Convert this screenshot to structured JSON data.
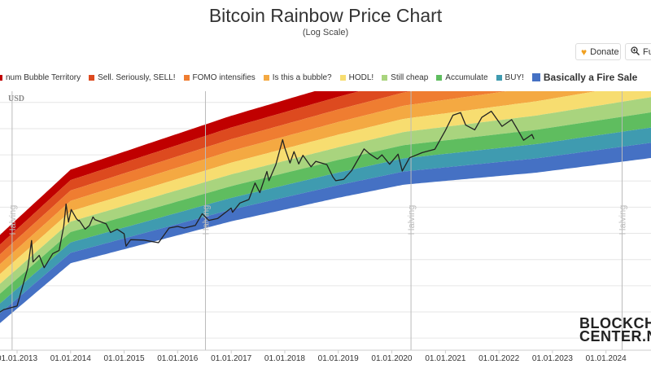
{
  "page": {
    "title": "Bitcoin Rainbow Price Chart",
    "subtitle": "(Log Scale)"
  },
  "toolbar": {
    "donate_label": "Donate",
    "full_label": "Full"
  },
  "logo": {
    "line1": "BLOCKCHAIN",
    "line2": "CENTER.NET"
  },
  "colors": {
    "bands": [
      "#c00000",
      "#dd4a1f",
      "#ef7d31",
      "#f4a942",
      "#f7dd70",
      "#a9d47e",
      "#5fbd5f",
      "#3f9bb0",
      "#4571c4"
    ],
    "price_line": "#222222",
    "halving_line": "#bbbbbb"
  },
  "chart_data": {
    "type": "line",
    "title": "Bitcoin Rainbow Price Chart",
    "subtitle": "(Log Scale)",
    "ylabel": "USD",
    "y_scale": "log",
    "grid": true,
    "xlim": [
      "2012-07-15",
      "2024-12-31"
    ],
    "x_ticks": [
      "01.01.2013",
      "01.01.2014",
      "01.01.2015",
      "01.01.2016",
      "01.01.2017",
      "01.01.2018",
      "01.01.2019",
      "01.01.2020",
      "01.01.2021",
      "01.01.2022",
      "01.01.2023",
      "01.01.2024"
    ],
    "legend": [
      {
        "name": "Maximum Bubble Territory",
        "shown_text": "num Bubble Territory",
        "color": "#c00000"
      },
      {
        "name": "Sell. Seriously, SELL!",
        "color": "#dd4a1f"
      },
      {
        "name": "FOMO intensifies",
        "color": "#ef7d31"
      },
      {
        "name": "Is this a bubble?",
        "color": "#f4a942"
      },
      {
        "name": "HODL!",
        "color": "#f7dd70"
      },
      {
        "name": "Still cheap",
        "color": "#a9d47e"
      },
      {
        "name": "Accumulate",
        "color": "#5fbd5f"
      },
      {
        "name": "BUY!",
        "color": "#3f9bb0"
      },
      {
        "name": "Basically a Fire Sale",
        "color": "#4571c4"
      }
    ],
    "annotations": [
      {
        "text": "Halving",
        "date": "2012-11-28"
      },
      {
        "text": "Halving",
        "date": "2016-07-09"
      },
      {
        "text": "Halving",
        "date": "2020-05-11"
      },
      {
        "text": "Halving",
        "date": "2024-04-20"
      }
    ],
    "price_series": {
      "name": "BTC Price",
      "points": [
        [
          "2012-07-15",
          8
        ],
        [
          "2012-10-01",
          11
        ],
        [
          "2013-01-01",
          13
        ],
        [
          "2013-03-15",
          70
        ],
        [
          "2013-04-10",
          230
        ],
        [
          "2013-04-20",
          90
        ],
        [
          "2013-06-01",
          120
        ],
        [
          "2013-07-05",
          70
        ],
        [
          "2013-09-01",
          130
        ],
        [
          "2013-10-15",
          150
        ],
        [
          "2013-11-15",
          430
        ],
        [
          "2013-12-01",
          1150
        ],
        [
          "2013-12-18",
          520
        ],
        [
          "2014-01-05",
          900
        ],
        [
          "2014-02-10",
          600
        ],
        [
          "2014-02-24",
          550
        ],
        [
          "2014-03-01",
          560
        ],
        [
          "2014-04-10",
          380
        ],
        [
          "2014-05-10",
          450
        ],
        [
          "2014-06-03",
          650
        ],
        [
          "2014-06-15",
          580
        ],
        [
          "2014-09-01",
          480
        ],
        [
          "2014-10-01",
          330
        ],
        [
          "2014-11-15",
          380
        ],
        [
          "2015-01-01",
          310
        ],
        [
          "2015-01-14",
          180
        ],
        [
          "2015-02-15",
          240
        ],
        [
          "2015-05-15",
          235
        ],
        [
          "2015-08-24",
          210
        ],
        [
          "2015-11-04",
          400
        ],
        [
          "2016-01-01",
          430
        ],
        [
          "2016-02-15",
          400
        ],
        [
          "2016-05-01",
          450
        ],
        [
          "2016-06-17",
          750
        ],
        [
          "2016-08-01",
          560
        ],
        [
          "2016-10-01",
          610
        ],
        [
          "2016-12-31",
          960
        ],
        [
          "2017-01-10",
          800
        ],
        [
          "2017-03-01",
          1200
        ],
        [
          "2017-05-01",
          1400
        ],
        [
          "2017-06-12",
          2900
        ],
        [
          "2017-07-15",
          1900
        ],
        [
          "2017-09-01",
          4800
        ],
        [
          "2017-09-15",
          3200
        ],
        [
          "2017-11-01",
          6500
        ],
        [
          "2017-12-17",
          19500
        ],
        [
          "2018-01-01",
          13500
        ],
        [
          "2018-02-06",
          7000
        ],
        [
          "2018-03-05",
          11500
        ],
        [
          "2018-04-06",
          6700
        ],
        [
          "2018-05-05",
          9800
        ],
        [
          "2018-06-29",
          5900
        ],
        [
          "2018-08-01",
          7500
        ],
        [
          "2018-10-15",
          6500
        ],
        [
          "2018-11-25",
          3800
        ],
        [
          "2018-12-15",
          3200
        ],
        [
          "2019-02-07",
          3400
        ],
        [
          "2019-04-02",
          5000
        ],
        [
          "2019-06-26",
          13000
        ],
        [
          "2019-08-01",
          10500
        ],
        [
          "2019-09-25",
          8300
        ],
        [
          "2019-10-26",
          10000
        ],
        [
          "2019-12-17",
          6600
        ],
        [
          "2020-02-13",
          10300
        ],
        [
          "2020-03-12",
          4900
        ],
        [
          "2020-05-01",
          8800
        ],
        [
          "2020-07-27",
          11000
        ],
        [
          "2020-10-21",
          12800
        ],
        [
          "2020-12-31",
          29000
        ],
        [
          "2021-02-21",
          57000
        ],
        [
          "2021-04-14",
          64000
        ],
        [
          "2021-05-19",
          37000
        ],
        [
          "2021-07-20",
          30000
        ],
        [
          "2021-09-06",
          52000
        ],
        [
          "2021-11-10",
          68000
        ],
        [
          "2022-01-22",
          35000
        ],
        [
          "2022-03-29",
          47000
        ],
        [
          "2022-05-12",
          29000
        ],
        [
          "2022-06-18",
          19000
        ],
        [
          "2022-08-14",
          24500
        ],
        [
          "2022-08-28",
          20000
        ]
      ]
    }
  }
}
